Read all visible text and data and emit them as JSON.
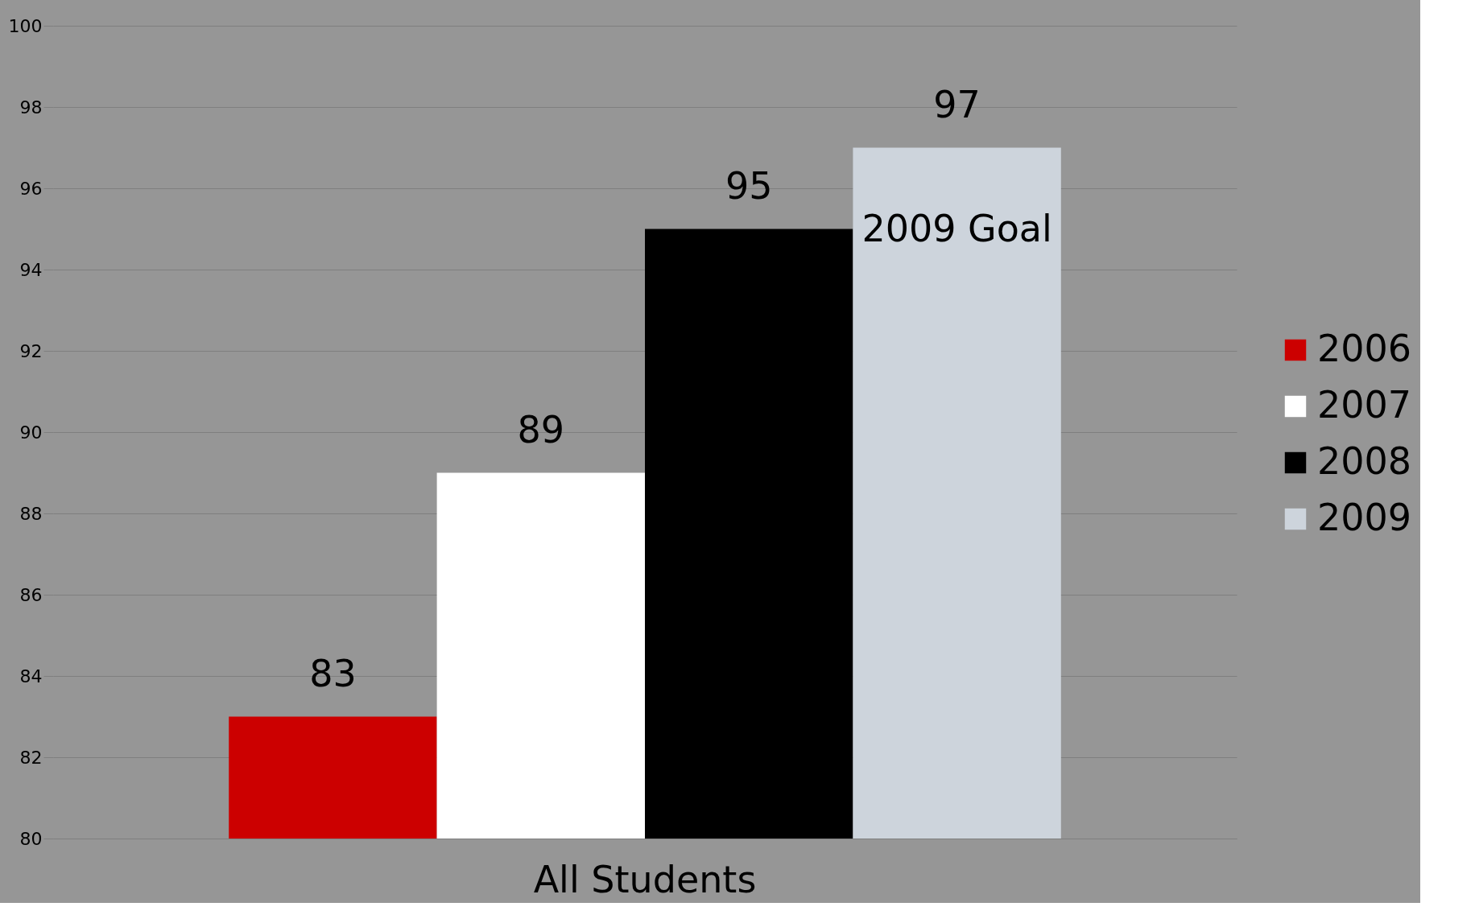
{
  "chart_data": {
    "type": "bar",
    "categories": [
      "All Students"
    ],
    "series": [
      {
        "name": "2006",
        "color": "#cc0000",
        "values": [
          83
        ]
      },
      {
        "name": "2007",
        "color": "#ffffff",
        "values": [
          89
        ]
      },
      {
        "name": "2008",
        "color": "#000000",
        "values": [
          95
        ]
      },
      {
        "name": "2009",
        "color": "#cdd4dc",
        "values": [
          97
        ]
      }
    ],
    "ylim": [
      80,
      100
    ],
    "yticks": [
      80,
      82,
      84,
      86,
      88,
      90,
      92,
      94,
      96,
      98,
      100
    ],
    "grid": "y",
    "legend": "right",
    "data_labels": true,
    "annotations": [
      "2009 Goal"
    ]
  }
}
